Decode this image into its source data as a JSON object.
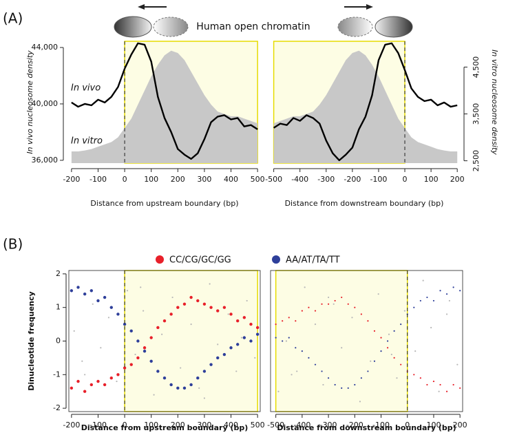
{
  "panel_labels": [
    "(A)",
    "(B)"
  ],
  "header": "Human open chromatin",
  "chart_data": [
    {
      "type": "line",
      "xlabel": "Distance from upstream boundary (bp)",
      "ylabel": "In vivo nucleosome density",
      "xlim": [
        -210,
        510
      ],
      "xticks": [
        -200,
        -100,
        0,
        100,
        200,
        300,
        400,
        500
      ],
      "ylim": [
        35800,
        44440
      ],
      "yticks": [
        {
          "value": 36000,
          "label": "36,000"
        },
        {
          "value": 40000,
          "label": "40,000"
        },
        {
          "value": 44000,
          "label": "44,000"
        }
      ],
      "y2lim": [
        2450,
        5050
      ],
      "highlight": [
        0,
        500
      ],
      "boundary": 0,
      "series": [
        {
          "name": "In vivo",
          "color": "#000000",
          "x": [
            -200,
            -175,
            -150,
            -125,
            -100,
            -75,
            -50,
            -25,
            0,
            25,
            50,
            75,
            100,
            125,
            150,
            175,
            200,
            225,
            250,
            275,
            300,
            325,
            350,
            375,
            400,
            425,
            450,
            475,
            500
          ],
          "values": [
            40100,
            39800,
            40000,
            39900,
            40300,
            40100,
            40500,
            41200,
            42500,
            43500,
            44300,
            44200,
            43000,
            40500,
            39000,
            38000,
            36800,
            36400,
            36100,
            36500,
            37500,
            38700,
            39100,
            39200,
            38900,
            39000,
            38400,
            38500,
            38200
          ]
        },
        {
          "name": "In vitro",
          "type": "area",
          "axis": "y2",
          "color": "#c8c8c8",
          "x": [
            -200,
            -175,
            -150,
            -125,
            -100,
            -75,
            -50,
            -25,
            0,
            25,
            50,
            75,
            100,
            125,
            150,
            175,
            200,
            225,
            250,
            275,
            300,
            325,
            350,
            375,
            400,
            425,
            450,
            475,
            500
          ],
          "values": [
            2700,
            2700,
            2720,
            2750,
            2800,
            2850,
            2900,
            3000,
            3200,
            3400,
            3700,
            4000,
            4300,
            4550,
            4750,
            4850,
            4800,
            4650,
            4400,
            4150,
            3900,
            3700,
            3550,
            3500,
            3450,
            3450,
            3400,
            3350,
            3300
          ]
        }
      ]
    },
    {
      "type": "line",
      "xlabel": "Distance from downstream boundary (bp)",
      "y2label": "In vitro nucleosome density",
      "xlim": [
        -520,
        210
      ],
      "xticks": [
        -500,
        -400,
        -300,
        -200,
        -100,
        0,
        100,
        200
      ],
      "ylim": [
        35800,
        44440
      ],
      "y2lim": [
        2450,
        5050
      ],
      "y2ticks": [
        {
          "value": 2500,
          "label": "2,500"
        },
        {
          "value": 3500,
          "label": "3,500"
        },
        {
          "value": 4500,
          "label": "4,500"
        }
      ],
      "highlight": [
        -500,
        0
      ],
      "boundary": 0,
      "series": [
        {
          "color": "#000000",
          "x": [
            -500,
            -475,
            -450,
            -425,
            -400,
            -375,
            -350,
            -325,
            -300,
            -275,
            -250,
            -225,
            -200,
            -175,
            -150,
            -125,
            -100,
            -75,
            -50,
            -25,
            0,
            25,
            50,
            75,
            100,
            125,
            150,
            175,
            200
          ],
          "values": [
            38300,
            38600,
            38500,
            39000,
            38800,
            39200,
            39000,
            38600,
            37400,
            36500,
            36000,
            36400,
            36900,
            38200,
            39100,
            40600,
            43100,
            44200,
            44300,
            43600,
            42400,
            41100,
            40500,
            40200,
            40300,
            39900,
            40100,
            39800,
            39900
          ]
        },
        {
          "type": "area",
          "axis": "y2",
          "color": "#c8c8c8",
          "x": [
            -500,
            -475,
            -450,
            -425,
            -400,
            -375,
            -350,
            -325,
            -300,
            -275,
            -250,
            -225,
            -200,
            -175,
            -150,
            -125,
            -100,
            -75,
            -50,
            -25,
            0,
            25,
            50,
            75,
            100,
            125,
            150,
            175,
            200
          ],
          "values": [
            3300,
            3350,
            3400,
            3450,
            3450,
            3500,
            3550,
            3700,
            3900,
            4150,
            4400,
            4650,
            4800,
            4850,
            4750,
            4550,
            4300,
            4000,
            3700,
            3400,
            3200,
            3000,
            2900,
            2850,
            2800,
            2750,
            2720,
            2700,
            2700
          ]
        }
      ]
    },
    {
      "type": "scatter",
      "xlabel": "Distance from upstream boundary (bp)",
      "ylabel": "Dinucleotide frequency",
      "xlim": [
        -210,
        510
      ],
      "xticks": [
        -200,
        -100,
        0,
        100,
        200,
        300,
        400,
        500
      ],
      "ylim": [
        -2.1,
        2.1
      ],
      "yticks": [
        -2,
        -1,
        0,
        1,
        2
      ],
      "highlight": [
        0,
        500
      ],
      "boundary": 0,
      "series": [
        {
          "color": "#b8b8b8",
          "x": [
            -190,
            -160,
            -120,
            -90,
            -60,
            -30,
            10,
            40,
            70,
            110,
            140,
            180,
            210,
            250,
            280,
            320,
            350,
            390,
            420,
            460,
            490,
            -150,
            60,
            300,
            440
          ],
          "values": [
            0.3,
            -0.6,
            1.1,
            -0.2,
            0.7,
            -1.2,
            1.5,
            -0.4,
            0.9,
            -1.6,
            0.2,
            1.3,
            -0.8,
            0.5,
            -1.4,
            1.7,
            -0.1,
            0.8,
            -0.9,
            1.2,
            -0.5,
            -1.0,
            1.6,
            -1.7,
            0.1
          ]
        },
        {
          "name": "CC/CG/GC/GG",
          "color": "#e8202a",
          "x": [
            -200,
            -175,
            -150,
            -125,
            -100,
            -75,
            -50,
            -25,
            0,
            25,
            50,
            75,
            100,
            125,
            150,
            175,
            200,
            225,
            250,
            275,
            300,
            325,
            350,
            375,
            400,
            425,
            450,
            475,
            500
          ],
          "values": [
            -1.4,
            -1.2,
            -1.5,
            -1.3,
            -1.2,
            -1.3,
            -1.1,
            -1.0,
            -0.8,
            -0.7,
            -0.5,
            -0.2,
            0.1,
            0.4,
            0.6,
            0.8,
            1.0,
            1.1,
            1.3,
            1.2,
            1.1,
            1.0,
            0.9,
            1.0,
            0.8,
            0.6,
            0.7,
            0.5,
            0.4
          ]
        },
        {
          "name": "AA/AT/TA/TT",
          "color": "#2e3f9a",
          "x": [
            -200,
            -175,
            -150,
            -125,
            -100,
            -75,
            -50,
            -25,
            0,
            25,
            50,
            75,
            100,
            125,
            150,
            175,
            200,
            225,
            250,
            275,
            300,
            325,
            350,
            375,
            400,
            425,
            450,
            475,
            500
          ],
          "values": [
            1.5,
            1.6,
            1.4,
            1.5,
            1.2,
            1.3,
            1.0,
            0.8,
            0.5,
            0.3,
            0.0,
            -0.3,
            -0.6,
            -0.9,
            -1.1,
            -1.3,
            -1.4,
            -1.4,
            -1.3,
            -1.1,
            -0.9,
            -0.7,
            -0.5,
            -0.4,
            -0.2,
            -0.1,
            0.1,
            0.0,
            0.2
          ]
        }
      ]
    },
    {
      "type": "scatter",
      "xlabel": "Distance from downstream boundary (bp)",
      "xlim": [
        -520,
        210
      ],
      "xticks": [
        -500,
        -400,
        -300,
        -200,
        -100,
        0,
        100,
        200
      ],
      "ylim": [
        -2.1,
        2.1
      ],
      "highlight": [
        -500,
        0
      ],
      "boundary": 0,
      "series": [
        {
          "color": "#b8b8b8",
          "x": [
            190,
            160,
            120,
            90,
            60,
            30,
            -10,
            -40,
            -70,
            -110,
            -140,
            -180,
            -210,
            -250,
            -280,
            -320,
            -350,
            -390,
            -420,
            -460,
            -490,
            150,
            -60,
            -300,
            -440
          ],
          "values": [
            -0.7,
            1.2,
            -1.5,
            0.4,
            1.8,
            -0.3,
            0.9,
            -1.1,
            0.2,
            1.4,
            -0.6,
            -1.8,
            0.7,
            -0.2,
            1.1,
            -1.3,
            0.5,
            1.6,
            -0.9,
            0.0,
            -1.5,
            0.8,
            -0.4,
            1.3,
            -1.0
          ]
        },
        {
          "color": "#e8202a",
          "x": [
            -500,
            -475,
            -450,
            -425,
            -400,
            -375,
            -350,
            -325,
            -300,
            -275,
            -250,
            -225,
            -200,
            -175,
            -150,
            -125,
            -100,
            -75,
            -50,
            -25,
            0,
            25,
            50,
            75,
            100,
            125,
            150,
            175,
            200
          ],
          "values": [
            0.5,
            0.6,
            0.7,
            0.6,
            0.9,
            1.0,
            0.9,
            1.1,
            1.1,
            1.2,
            1.3,
            1.1,
            1.0,
            0.8,
            0.6,
            0.3,
            0.1,
            -0.2,
            -0.5,
            -0.7,
            -0.9,
            -1.0,
            -1.1,
            -1.3,
            -1.2,
            -1.3,
            -1.5,
            -1.3,
            -1.4
          ]
        },
        {
          "color": "#2e3f9a",
          "x": [
            -500,
            -475,
            -450,
            -425,
            -400,
            -375,
            -350,
            -325,
            -300,
            -275,
            -250,
            -225,
            -200,
            -175,
            -150,
            -125,
            -100,
            -75,
            -50,
            -25,
            0,
            25,
            50,
            75,
            100,
            125,
            150,
            175,
            200
          ],
          "values": [
            0.1,
            0.0,
            0.1,
            -0.2,
            -0.3,
            -0.5,
            -0.7,
            -0.9,
            -1.1,
            -1.3,
            -1.4,
            -1.4,
            -1.3,
            -1.1,
            -0.9,
            -0.6,
            -0.3,
            0.0,
            0.3,
            0.5,
            0.8,
            1.0,
            1.2,
            1.3,
            1.2,
            1.5,
            1.4,
            1.6,
            1.5
          ]
        }
      ]
    }
  ]
}
